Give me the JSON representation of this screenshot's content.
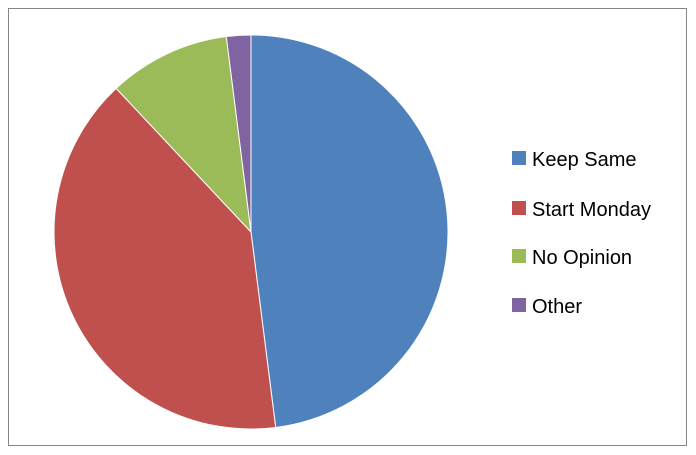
{
  "chart_data": {
    "type": "pie",
    "title": "",
    "categories": [
      "Keep Same",
      "Start Monday",
      "No Opinion",
      "Other"
    ],
    "values": [
      48,
      40,
      10,
      2
    ],
    "unit": "percent",
    "start_angle": "12 o'clock",
    "direction": "clockwise",
    "colors": [
      "#4F81BD",
      "#C0504D",
      "#9BBB59",
      "#8064A2"
    ],
    "legend": {
      "position": "right",
      "entries": [
        "Keep Same",
        "Start Monday",
        "No Opinion",
        "Other"
      ]
    }
  }
}
